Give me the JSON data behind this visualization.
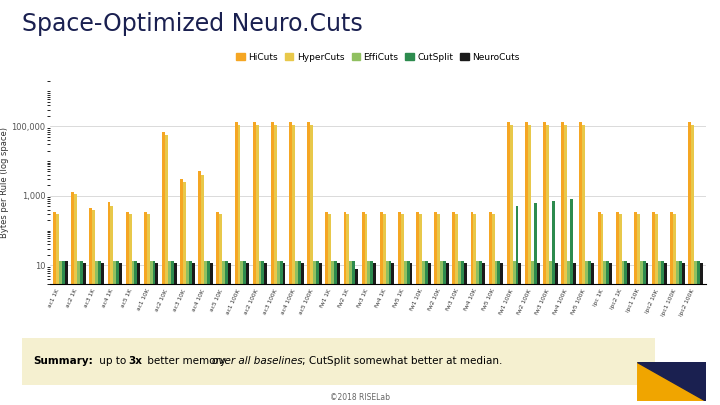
{
  "title": "Space-Optimized Neuro.Cuts",
  "ylabel": "Bytes per Rule (log space)",
  "legend_labels": [
    "HiCuts",
    "HyperCuts",
    "EffiCuts",
    "CutSplit",
    "NeuroCuts"
  ],
  "colors": [
    "#F5A623",
    "#E8C84A",
    "#90C060",
    "#2D8B4E",
    "#1A1A1A"
  ],
  "background": "#FFFFFF",
  "summary_text_bold": "Summary:",
  "summary_text": " up to 3x better memory ",
  "summary_text_italic": "over all baselines",
  "summary_text2": "; CutSplit somewhat better at median.",
  "summary_bg": "#F5F0D0",
  "footer": "©2018 RISELab",
  "categories": [
    "ac1 1K",
    "ac2 1K",
    "ac3 1K",
    "ac4 1K",
    "ac5 1K",
    "ac1 10K",
    "ac2 10K",
    "ac3 10K",
    "ac4 10K",
    "ac5 10K",
    "ac1 100K",
    "ac2 100K",
    "ac3 100K",
    "ac4 100K",
    "ac5 100K",
    "fw1 1K",
    "fw2 1K",
    "fw3 1K",
    "fw4 1K",
    "fw5 1K",
    "fw1 10K",
    "fw2 10K",
    "fw3 10K",
    "fw4 10K",
    "fw5 10K",
    "fw1 100K",
    "fw2 100K",
    "fw3 100K",
    "fw4 100K",
    "fw5 100K",
    "ipc 1K",
    "ipc2 1K",
    "ipc1 10K",
    "ipc2 10K",
    "ipc1 100K",
    "ipc2 100K"
  ],
  "hicuts": [
    350,
    1300,
    450,
    650,
    350,
    350,
    70000,
    3000,
    5000,
    350,
    130000,
    130000,
    130000,
    130000,
    130000,
    350,
    350,
    350,
    350,
    350,
    350,
    350,
    350,
    350,
    350,
    130000,
    130000,
    130000,
    130000,
    130000,
    350,
    350,
    350,
    350,
    350,
    130000
  ],
  "hypercuts": [
    300,
    1100,
    400,
    500,
    300,
    300,
    55000,
    2500,
    4000,
    300,
    110000,
    110000,
    110000,
    110000,
    110000,
    300,
    300,
    300,
    300,
    300,
    300,
    300,
    300,
    300,
    300,
    110000,
    110000,
    110000,
    110000,
    110000,
    300,
    300,
    300,
    300,
    300,
    110000
  ],
  "efficuts": [
    13,
    13,
    13,
    13,
    13,
    13,
    13,
    13,
    13,
    13,
    13,
    13,
    13,
    13,
    13,
    13,
    13,
    13,
    13,
    13,
    13,
    13,
    13,
    13,
    13,
    13,
    13,
    13,
    13,
    13,
    13,
    13,
    13,
    13,
    13,
    13
  ],
  "cutsplit": [
    13,
    13,
    13,
    13,
    13,
    13,
    13,
    13,
    13,
    13,
    13,
    13,
    13,
    13,
    13,
    13,
    13,
    13,
    13,
    13,
    13,
    13,
    13,
    13,
    13,
    500,
    600,
    700,
    800,
    13,
    13,
    13,
    13,
    13,
    13,
    13
  ],
  "neurocuts": [
    13,
    12,
    12,
    12,
    12,
    12,
    12,
    12,
    12,
    12,
    12,
    12,
    12,
    12,
    12,
    12,
    8,
    12,
    12,
    12,
    12,
    12,
    12,
    12,
    12,
    12,
    12,
    12,
    12,
    12,
    12,
    12,
    12,
    12,
    12,
    12
  ]
}
